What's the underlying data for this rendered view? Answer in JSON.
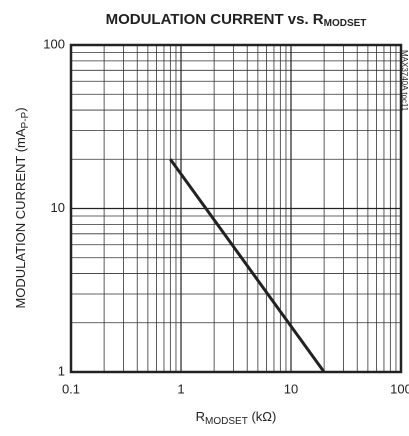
{
  "chart_data": {
    "type": "line",
    "title": [
      "MODULATION CURRENT vs. R",
      "MODSET"
    ],
    "x_label": [
      "R",
      "MODSET",
      " (kΩ)"
    ],
    "y_label": [
      "MODULATION CURRENT (mA",
      "P-P",
      ")"
    ],
    "annotation": "MAX3740A toc11",
    "x": [
      0.8,
      20
    ],
    "series": [
      {
        "name": null,
        "color": "#222222",
        "values": [
          20,
          1
        ]
      }
    ],
    "xlim": [
      0.1,
      100
    ],
    "xticks": [
      0.1,
      1,
      10,
      100
    ],
    "ylim": [
      1,
      100
    ],
    "yticks": [
      1,
      10,
      100
    ],
    "xlog": true,
    "ylog": true,
    "grid": true
  }
}
